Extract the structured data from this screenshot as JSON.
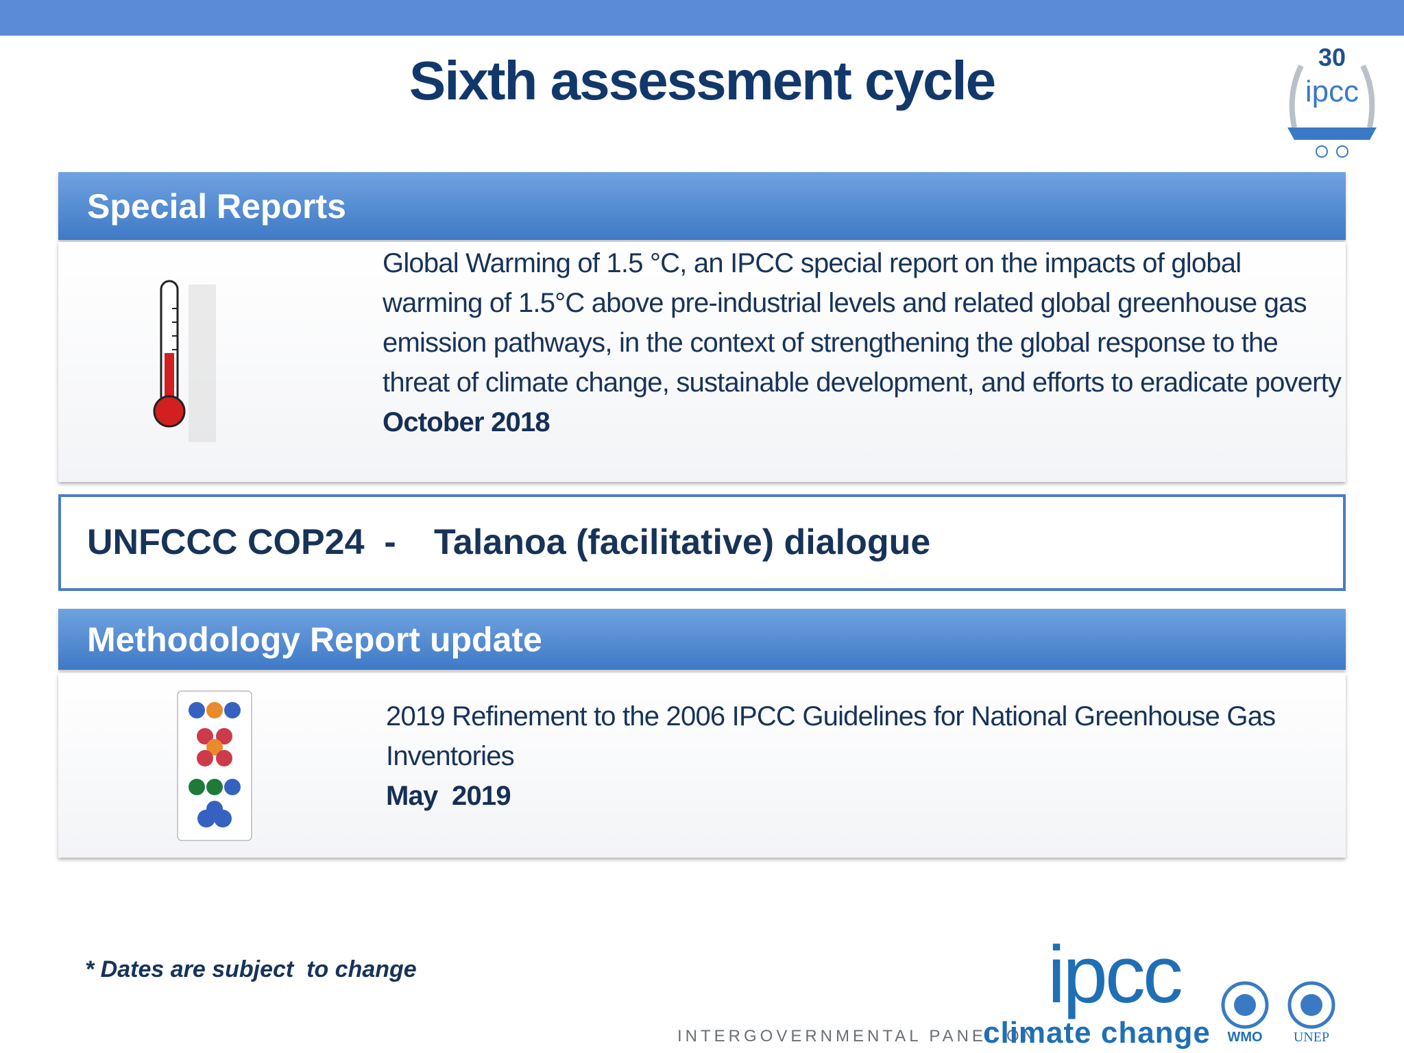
{
  "header": {
    "title": "Sixth assessment cycle",
    "badge": {
      "number": "30",
      "name": "ipcc"
    }
  },
  "sections": [
    {
      "heading": "Special Reports",
      "text": "Global Warming of 1.5 °C, an IPCC special report on the impacts of global warming of 1.5°C above pre-industrial levels and related global greenhouse gas emission pathways, in the context of strengthening the global response to the threat of climate change, sustainable development, and efforts to eradicate poverty",
      "date": "October 2018"
    },
    {
      "left": "UNFCCC COP24  -",
      "right": "Talanoa (facilitative) dialogue"
    },
    {
      "heading": "Methodology Report update",
      "text": "2019 Refinement to the 2006 IPCC Guidelines for National Greenhouse Gas Inventories",
      "date": "May  2019"
    }
  ],
  "footnote": "* Dates are subject  to change",
  "footer": {
    "logo": "ipcc",
    "org": "INTERGOVERNMENTAL PANEL ON",
    "tagline": "climate change",
    "partners": [
      "WMO",
      "UNEP"
    ]
  }
}
